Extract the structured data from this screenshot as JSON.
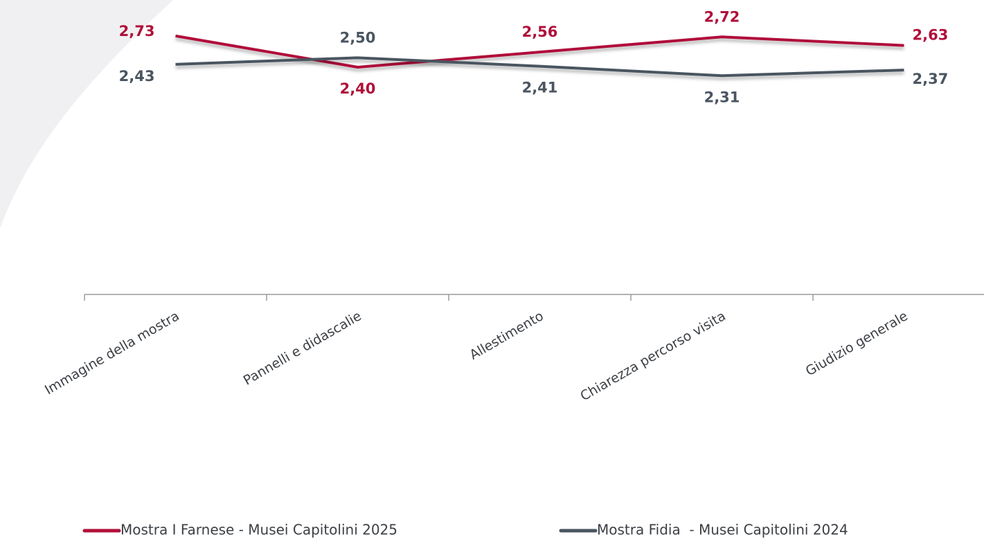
{
  "chart_data": {
    "type": "line",
    "categories": [
      "Immagine della mostra",
      "Pannelli e didascalie",
      "Allestimento",
      "Chiarezza percorso visita",
      "Giudizio generale"
    ],
    "series": [
      {
        "name": "Mostra I Farnese - Musei Capitolini 2025",
        "color": "#b0103a",
        "values": [
          2.73,
          2.4,
          2.56,
          2.72,
          2.63
        ],
        "value_labels": [
          "2,73",
          "2,40",
          "2,56",
          "2,72",
          "2,63"
        ]
      },
      {
        "name": "Mostra Fidia  - Musei Capitolini 2024",
        "color": "#4a5561",
        "values": [
          2.43,
          2.5,
          2.41,
          2.31,
          2.37
        ],
        "value_labels": [
          "2,43",
          "2,50",
          "2,41",
          "2,31",
          "2,37"
        ]
      }
    ],
    "ylim": [
      0,
      3
    ]
  }
}
